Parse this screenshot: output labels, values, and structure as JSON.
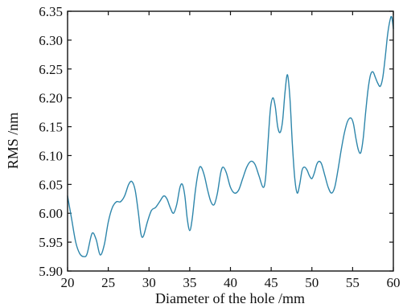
{
  "chart_data": {
    "type": "line",
    "title": "",
    "xlabel": "Diameter of the hole /mm",
    "ylabel": "RMS /nm",
    "xlim": [
      20,
      60
    ],
    "ylim": [
      5.9,
      6.35
    ],
    "x_ticks": [
      20,
      25,
      30,
      35,
      40,
      45,
      50,
      55,
      60
    ],
    "x_tick_labels": [
      "20",
      "25",
      "30",
      "35",
      "40",
      "45",
      "50",
      "55",
      "60"
    ],
    "y_ticks": [
      5.9,
      5.95,
      6.0,
      6.05,
      6.1,
      6.15,
      6.2,
      6.25,
      6.3,
      6.35
    ],
    "y_tick_labels": [
      "5.90",
      "5.95",
      "6.00",
      "6.05",
      "6.10",
      "6.15",
      "6.20",
      "6.25",
      "6.30",
      "6.35"
    ],
    "grid": false,
    "legend": "none",
    "series": [
      {
        "color": "#2e86ab",
        "x": [
          20.0,
          20.5,
          21.0,
          21.5,
          22.0,
          22.4,
          23.0,
          23.5,
          24.0,
          24.5,
          25.0,
          25.5,
          26.0,
          26.5,
          27.0,
          27.5,
          27.9,
          28.3,
          28.7,
          29.0,
          29.3,
          29.8,
          30.3,
          30.8,
          31.3,
          31.8,
          32.2,
          32.6,
          33.0,
          33.4,
          33.8,
          34.1,
          34.4,
          34.7,
          35.0,
          35.3,
          35.7,
          36.1,
          36.4,
          36.8,
          37.2,
          37.6,
          38.0,
          38.4,
          38.8,
          39.1,
          39.5,
          40.0,
          40.5,
          41.0,
          41.5,
          42.0,
          42.5,
          43.0,
          43.5,
          44.0,
          44.3,
          44.6,
          44.9,
          45.2,
          45.5,
          45.8,
          46.1,
          46.4,
          46.7,
          47.0,
          47.3,
          47.6,
          47.9,
          48.2,
          48.5,
          48.8,
          49.1,
          49.4,
          49.7,
          50.0,
          50.3,
          50.6,
          50.9,
          51.2,
          51.6,
          52.0,
          52.4,
          52.8,
          53.2,
          53.6,
          54.0,
          54.4,
          54.8,
          55.1,
          55.4,
          55.7,
          56.0,
          56.3,
          56.6,
          56.9,
          57.2,
          57.5,
          57.8,
          58.1,
          58.4,
          58.7,
          59.0,
          59.3,
          59.6,
          59.8,
          60.0
        ],
        "y": [
          6.03,
          5.99,
          5.95,
          5.93,
          5.925,
          5.93,
          5.965,
          5.955,
          5.928,
          5.945,
          5.985,
          6.01,
          6.02,
          6.02,
          6.03,
          6.05,
          6.055,
          6.04,
          6.0,
          5.965,
          5.96,
          5.985,
          6.005,
          6.01,
          6.02,
          6.03,
          6.025,
          6.01,
          6.0,
          6.015,
          6.045,
          6.05,
          6.03,
          5.99,
          5.97,
          5.99,
          6.04,
          6.075,
          6.08,
          6.065,
          6.04,
          6.02,
          6.015,
          6.035,
          6.07,
          6.08,
          6.07,
          6.045,
          6.035,
          6.04,
          6.06,
          6.08,
          6.09,
          6.085,
          6.065,
          6.045,
          6.06,
          6.12,
          6.18,
          6.2,
          6.185,
          6.15,
          6.14,
          6.16,
          6.21,
          6.24,
          6.2,
          6.12,
          6.06,
          6.035,
          6.05,
          6.075,
          6.08,
          6.075,
          6.065,
          6.06,
          6.07,
          6.085,
          6.09,
          6.085,
          6.065,
          6.045,
          6.035,
          6.045,
          6.075,
          6.11,
          6.14,
          6.16,
          6.165,
          6.155,
          6.13,
          6.11,
          6.105,
          6.13,
          6.175,
          6.215,
          6.24,
          6.245,
          6.235,
          6.225,
          6.22,
          6.235,
          6.27,
          6.31,
          6.335,
          6.34,
          6.32
        ]
      }
    ]
  }
}
